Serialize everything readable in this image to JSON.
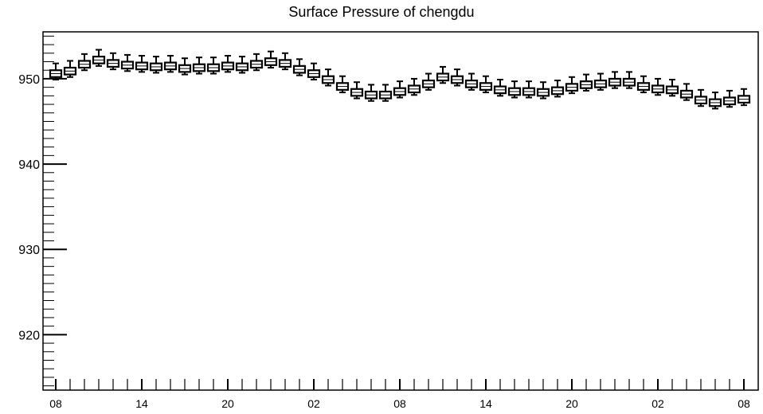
{
  "chart_data": {
    "type": "box",
    "title": "Surface Pressure of chengdu",
    "xlabel": "",
    "ylabel": "",
    "ylim": [
      913.5,
      955.5
    ],
    "y_ticks": [
      920,
      930,
      940,
      950
    ],
    "x_tick_labels": [
      "08",
      "14",
      "20",
      "02",
      "08",
      "14",
      "20",
      "02",
      "08"
    ],
    "x_tick_hours": [
      0,
      6,
      12,
      18,
      24,
      30,
      36,
      42,
      48
    ],
    "grid": false,
    "series": [
      {
        "hours": [
          0,
          1,
          2,
          3,
          4,
          5,
          6,
          7,
          8,
          9,
          10,
          11,
          12,
          13,
          14,
          15,
          16,
          17,
          18,
          19,
          20,
          21,
          22,
          23,
          24,
          25,
          26,
          27,
          28,
          29,
          30,
          31,
          32,
          33,
          34,
          35,
          36,
          37,
          38,
          39,
          40,
          41,
          42,
          43,
          44,
          45,
          46,
          47,
          48
        ],
        "median": [
          950.6,
          950.9,
          951.7,
          952.2,
          951.8,
          951.6,
          951.5,
          951.4,
          951.5,
          951.2,
          951.3,
          951.3,
          951.5,
          951.4,
          951.7,
          952.0,
          951.8,
          951.1,
          950.6,
          949.9,
          949.1,
          948.4,
          948.1,
          948.1,
          948.5,
          948.8,
          949.4,
          950.2,
          949.9,
          949.4,
          949.1,
          948.7,
          948.5,
          948.5,
          948.4,
          948.6,
          949.0,
          949.3,
          949.4,
          949.6,
          949.6,
          949.1,
          948.8,
          948.7,
          948.2,
          947.5,
          947.2,
          947.4,
          947.6
        ],
        "q1": [
          950.2,
          950.5,
          951.3,
          951.8,
          951.4,
          951.2,
          951.1,
          951.0,
          951.1,
          950.8,
          950.9,
          950.9,
          951.1,
          951.0,
          951.3,
          951.6,
          951.4,
          950.7,
          950.2,
          949.5,
          948.7,
          948.0,
          947.7,
          947.7,
          948.1,
          948.4,
          949.0,
          949.8,
          949.5,
          949.0,
          948.7,
          948.3,
          948.1,
          948.1,
          948.0,
          948.2,
          948.6,
          948.9,
          949.0,
          949.2,
          949.2,
          948.7,
          948.4,
          948.3,
          947.8,
          947.1,
          946.8,
          947.0,
          947.2
        ],
        "q3": [
          951.0,
          951.3,
          952.1,
          952.6,
          952.2,
          952.0,
          951.9,
          951.8,
          951.9,
          951.6,
          951.7,
          951.7,
          951.9,
          951.8,
          952.1,
          952.4,
          952.2,
          951.5,
          951.0,
          950.3,
          949.5,
          948.8,
          948.5,
          948.5,
          948.9,
          949.2,
          949.8,
          950.6,
          950.3,
          949.8,
          949.5,
          949.1,
          948.9,
          948.9,
          948.8,
          949.0,
          949.4,
          949.7,
          949.8,
          950.0,
          950.0,
          949.5,
          949.2,
          949.1,
          948.6,
          947.9,
          947.6,
          947.8,
          948.0
        ],
        "min": [
          949.9,
          950.2,
          951.0,
          951.5,
          951.1,
          950.9,
          950.8,
          950.7,
          950.8,
          950.5,
          950.6,
          950.6,
          950.8,
          950.7,
          951.0,
          951.3,
          951.1,
          950.4,
          949.9,
          949.2,
          948.4,
          947.7,
          947.4,
          947.4,
          947.8,
          948.1,
          948.7,
          949.5,
          949.2,
          948.7,
          948.4,
          948.0,
          947.8,
          947.8,
          947.7,
          947.9,
          948.3,
          948.6,
          948.7,
          948.9,
          948.9,
          948.4,
          948.1,
          948.0,
          947.5,
          946.8,
          946.5,
          946.7,
          946.9
        ],
        "max": [
          951.8,
          952.1,
          952.9,
          953.4,
          953.0,
          952.8,
          952.7,
          952.6,
          952.7,
          952.4,
          952.5,
          952.5,
          952.7,
          952.6,
          952.9,
          953.2,
          953.0,
          952.3,
          951.8,
          951.1,
          950.3,
          949.6,
          949.3,
          949.3,
          949.7,
          950.0,
          950.6,
          951.4,
          951.1,
          950.6,
          950.3,
          949.9,
          949.7,
          949.7,
          949.6,
          949.8,
          950.2,
          950.5,
          950.6,
          950.8,
          950.8,
          950.3,
          950.0,
          949.9,
          949.4,
          948.7,
          948.4,
          948.6,
          948.8
        ]
      }
    ]
  }
}
